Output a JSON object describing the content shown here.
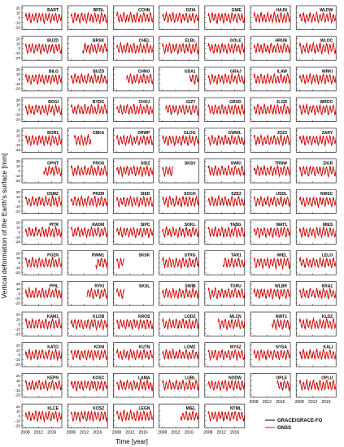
{
  "chart_data": {
    "type": "line",
    "ylabel": "Vertical deformation of the Earth's surface [mm]",
    "xlabel": "Time [year]",
    "x_ticks": [
      "2008",
      "2012",
      "2016"
    ],
    "y_ticks": [
      "20",
      "10",
      "0",
      "-10",
      "-20"
    ],
    "ylim": [
      -25,
      25
    ],
    "xlim": [
      2007,
      2019
    ],
    "grid": false,
    "legend_position": "bottom-right",
    "series": [
      {
        "name": "GRACE/GRACE-FO",
        "color": "#000000"
      },
      {
        "name": "GNSS",
        "color": "#ff0000"
      }
    ],
    "annual_cycle": {
      "amplitude_mm": 8,
      "peak_month": 2
    },
    "stations": [
      {
        "name": "BART",
        "start": 2008.0,
        "end": 2019.0
      },
      {
        "name": "BPDL",
        "start": 2008.0,
        "end": 2019.0
      },
      {
        "name": "CCHN",
        "start": 2008.0,
        "end": 2019.0
      },
      {
        "name": "DZIA",
        "start": 2008.0,
        "end": 2019.0
      },
      {
        "name": "GNIE",
        "start": 2008.0,
        "end": 2019.0
      },
      {
        "name": "HAJN",
        "start": 2008.0,
        "end": 2019.0
      },
      {
        "name": "WLDW",
        "start": 2008.0,
        "end": 2019.0
      },
      {
        "name": "BUZD",
        "start": 2008.0,
        "end": 2019.0
      },
      {
        "name": "BRSK",
        "start": 2011.5,
        "end": 2019.0
      },
      {
        "name": "CHEL",
        "start": 2008.0,
        "end": 2019.0
      },
      {
        "name": "ELBL",
        "start": 2008.0,
        "end": 2019.0
      },
      {
        "name": "GOLE",
        "start": 2008.0,
        "end": 2019.0
      },
      {
        "name": "HRUB",
        "start": 2008.0,
        "end": 2019.0
      },
      {
        "name": "WLOC",
        "start": 2008.0,
        "end": 2019.0
      },
      {
        "name": "BILG",
        "start": 2008.0,
        "end": 2019.0
      },
      {
        "name": "BUZD",
        "start": 2008.0,
        "end": 2019.0
      },
      {
        "name": "CHNO",
        "start": 2011.0,
        "end": 2019.0
      },
      {
        "name": "GDA1",
        "start": 2016.2,
        "end": 2019.0
      },
      {
        "name": "GRAJ",
        "start": 2008.0,
        "end": 2019.0
      },
      {
        "name": "ILAW",
        "start": 2008.0,
        "end": 2019.0
      },
      {
        "name": "WRKI",
        "start": 2008.0,
        "end": 2019.0
      },
      {
        "name": "BOGI",
        "start": 2008.0,
        "end": 2019.0
      },
      {
        "name": "BYDG",
        "start": 2008.0,
        "end": 2019.0
      },
      {
        "name": "CHOJ",
        "start": 2008.0,
        "end": 2019.0
      },
      {
        "name": "GIZY",
        "start": 2009.0,
        "end": 2019.0
      },
      {
        "name": "GRUD",
        "start": 2008.0,
        "end": 2019.0
      },
      {
        "name": "JLGR",
        "start": 2008.0,
        "end": 2019.0
      },
      {
        "name": "WROC",
        "start": 2008.0,
        "end": 2019.0
      },
      {
        "name": "BOR1",
        "start": 2008.0,
        "end": 2019.0
      },
      {
        "name": "CBKA",
        "start": 2009.0,
        "end": 2014.0
      },
      {
        "name": "DRWP",
        "start": 2008.0,
        "end": 2019.0
      },
      {
        "name": "GLOG",
        "start": 2008.0,
        "end": 2019.0
      },
      {
        "name": "GWWL",
        "start": 2008.0,
        "end": 2019.0
      },
      {
        "name": "JOZ2",
        "start": 2008.0,
        "end": 2019.0
      },
      {
        "name": "ZARY",
        "start": 2008.0,
        "end": 2019.0
      },
      {
        "name": "OPNT",
        "start": 2013.5,
        "end": 2019.0
      },
      {
        "name": "PROS",
        "start": 2008.0,
        "end": 2019.0
      },
      {
        "name": "SIDZ",
        "start": 2008.0,
        "end": 2019.0
      },
      {
        "name": "SKSV",
        "start": 2008.0,
        "end": 2011.3
      },
      {
        "name": "SWKI",
        "start": 2008.0,
        "end": 2019.0
      },
      {
        "name": "TRNW",
        "start": 2008.0,
        "end": 2019.0
      },
      {
        "name": "ZIGR",
        "start": 2008.0,
        "end": 2019.0
      },
      {
        "name": "OSMZ",
        "start": 2008.0,
        "end": 2019.0
      },
      {
        "name": "PRZM",
        "start": 2008.0,
        "end": 2019.0
      },
      {
        "name": "SIED",
        "start": 2008.0,
        "end": 2019.0
      },
      {
        "name": "SOCH",
        "start": 2008.0,
        "end": 2019.0
      },
      {
        "name": "SZE2",
        "start": 2008.0,
        "end": 2019.0
      },
      {
        "name": "USDL",
        "start": 2008.0,
        "end": 2019.0
      },
      {
        "name": "NWSC",
        "start": 2008.0,
        "end": 2019.0
      },
      {
        "name": "PITR",
        "start": 2008.0,
        "end": 2019.0
      },
      {
        "name": "RADM",
        "start": 2008.0,
        "end": 2019.0
      },
      {
        "name": "SIPC",
        "start": 2008.0,
        "end": 2019.0
      },
      {
        "name": "SOKL",
        "start": 2008.0,
        "end": 2019.0
      },
      {
        "name": "TABG",
        "start": 2008.0,
        "end": 2019.0
      },
      {
        "name": "WAT1",
        "start": 2008.0,
        "end": 2019.0
      },
      {
        "name": "MIES",
        "start": 2008.0,
        "end": 2019.0
      },
      {
        "name": "POZN",
        "start": 2008.0,
        "end": 2019.0
      },
      {
        "name": "RWM1",
        "start": 2015.5,
        "end": 2019.0
      },
      {
        "name": "SKSK",
        "start": 2008.0,
        "end": 2010.3
      },
      {
        "name": "STRG",
        "start": 2008.0,
        "end": 2019.0
      },
      {
        "name": "TAR1",
        "start": 2012.5,
        "end": 2019.0
      },
      {
        "name": "WIEL",
        "start": 2008.0,
        "end": 2019.0
      },
      {
        "name": "LELO",
        "start": 2008.0,
        "end": 2019.0
      },
      {
        "name": "PPIL",
        "start": 2008.0,
        "end": 2019.0
      },
      {
        "name": "RYKI",
        "start": 2012.8,
        "end": 2019.0
      },
      {
        "name": "SKSL",
        "start": 2008.0,
        "end": 2010.3
      },
      {
        "name": "SWIB",
        "start": 2008.0,
        "end": 2019.0
      },
      {
        "name": "TORU",
        "start": 2008.0,
        "end": 2019.0
      },
      {
        "name": "WLBR",
        "start": 2008.0,
        "end": 2019.0
      },
      {
        "name": "KRA1",
        "start": 2008.0,
        "end": 2019.0
      },
      {
        "name": "KAM1",
        "start": 2008.0,
        "end": 2019.0
      },
      {
        "name": "KLOB",
        "start": 2008.0,
        "end": 2019.0
      },
      {
        "name": "KROS",
        "start": 2008.0,
        "end": 2019.0
      },
      {
        "name": "LODZ",
        "start": 2008.0,
        "end": 2019.0
      },
      {
        "name": "MLCN",
        "start": 2011.0,
        "end": 2019.0
      },
      {
        "name": "NWT1",
        "start": 2013.5,
        "end": 2019.0
      },
      {
        "name": "KLDZ",
        "start": 2008.0,
        "end": 2019.0
      },
      {
        "name": "KATO",
        "start": 2008.0,
        "end": 2019.0
      },
      {
        "name": "KONI",
        "start": 2008.0,
        "end": 2019.0
      },
      {
        "name": "KUTN",
        "start": 2008.0,
        "end": 2019.0
      },
      {
        "name": "LOMZ",
        "start": 2008.0,
        "end": 2019.0
      },
      {
        "name": "MYSZ",
        "start": 2008.0,
        "end": 2019.0
      },
      {
        "name": "NYSA",
        "start": 2008.0,
        "end": 2019.0
      },
      {
        "name": "KALI",
        "start": 2008.0,
        "end": 2019.0
      },
      {
        "name": "KEPN",
        "start": 2008.0,
        "end": 2019.0
      },
      {
        "name": "KOSC",
        "start": 2008.0,
        "end": 2019.0
      },
      {
        "name": "LAMA",
        "start": 2008.0,
        "end": 2019.0
      },
      {
        "name": "LUBL",
        "start": 2008.0,
        "end": 2019.0
      },
      {
        "name": "NODW",
        "start": 2008.0,
        "end": 2019.0
      },
      {
        "name": "OPLE",
        "start": 2015.0,
        "end": 2019.0
      },
      {
        "name": "OPLU",
        "start": 2008.0,
        "end": 2019.0
      },
      {
        "name": "KLCE",
        "start": 2008.0,
        "end": 2019.0
      },
      {
        "name": "KOSZ",
        "start": 2008.0,
        "end": 2019.0
      },
      {
        "name": "LEGN",
        "start": 2008.0,
        "end": 2019.0
      },
      {
        "name": "MIEL",
        "start": 2013.5,
        "end": 2019.0
      },
      {
        "name": "NTML",
        "start": 2008.0,
        "end": 2019.0
      }
    ]
  }
}
